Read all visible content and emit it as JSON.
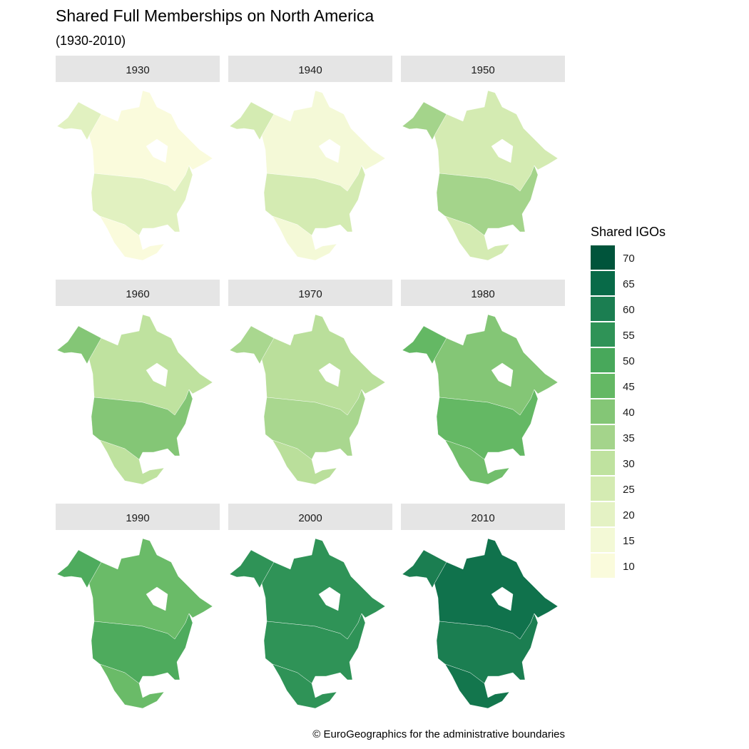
{
  "title": "Shared Full Memberships on North America",
  "subtitle": "(1930-2010)",
  "caption": "© EuroGeographics for the administrative boundaries",
  "chart_data": {
    "type": "choropleth",
    "facet_by": "year",
    "regions": [
      "Canada",
      "United States",
      "Mexico"
    ],
    "facets": [
      {
        "year": "1930",
        "values": {
          "Canada": 10,
          "United States": 21,
          "Mexico": 10
        }
      },
      {
        "year": "1940",
        "values": {
          "Canada": 14,
          "United States": 25,
          "Mexico": 14
        }
      },
      {
        "year": "1950",
        "values": {
          "Canada": 25,
          "United States": 35,
          "Mexico": 25
        }
      },
      {
        "year": "1960",
        "values": {
          "Canada": 30,
          "United States": 40,
          "Mexico": 30
        }
      },
      {
        "year": "1970",
        "values": {
          "Canada": 31,
          "United States": 34,
          "Mexico": 31
        }
      },
      {
        "year": "1980",
        "values": {
          "Canada": 40,
          "United States": 45,
          "Mexico": 43
        }
      },
      {
        "year": "1990",
        "values": {
          "Canada": 44,
          "United States": 49,
          "Mexico": 44
        }
      },
      {
        "year": "2000",
        "values": {
          "Canada": 55,
          "United States": 55,
          "Mexico": 55
        }
      },
      {
        "year": "2010",
        "values": {
          "Canada": 63,
          "United States": 60,
          "Mexico": 62
        }
      }
    ],
    "legend": {
      "title": "Shared IGOs",
      "placement": "right",
      "breaks": [
        70,
        65,
        60,
        55,
        50,
        45,
        40,
        35,
        30,
        25,
        20,
        15,
        10
      ],
      "colors": [
        "#00543b",
        "#086a48",
        "#1b7e51",
        "#2f9357",
        "#48a85b",
        "#64b864",
        "#84c676",
        "#a4d48b",
        "#bfe29f",
        "#d4ebb2",
        "#e4f2c4",
        "#f3f9d6",
        "#fafbdc"
      ]
    }
  },
  "strip_color": "#e5e5e5"
}
